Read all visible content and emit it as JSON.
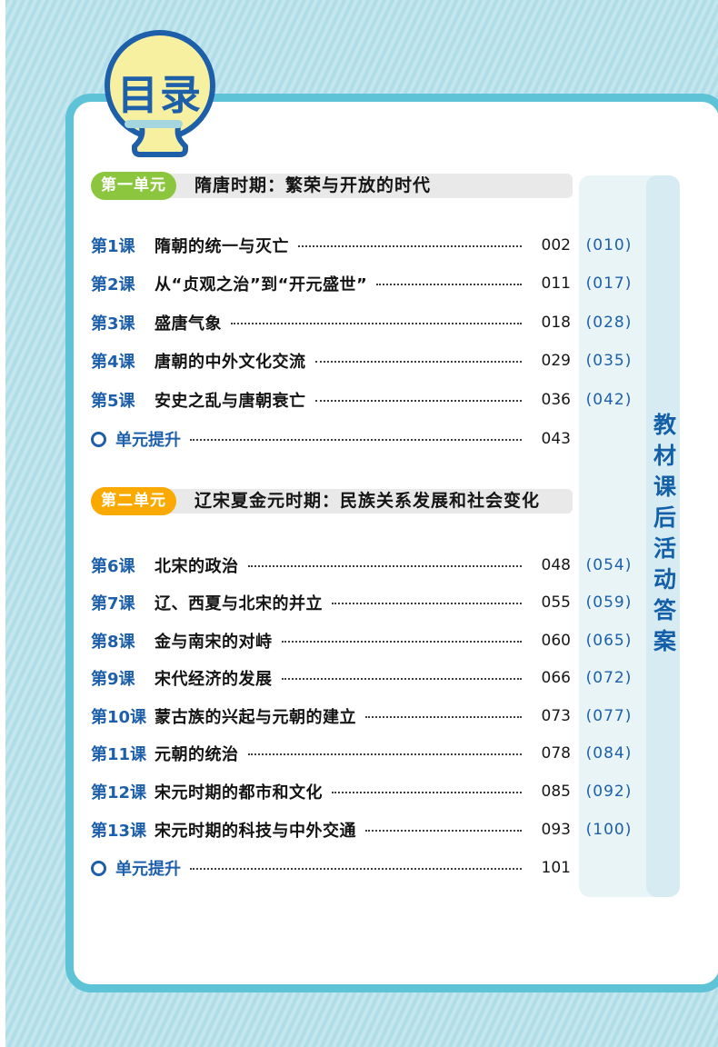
{
  "logo": {
    "title": "目录"
  },
  "answers_sidebar": {
    "label": "教材课后活动答案"
  },
  "colors": {
    "accent_blue": "#1d5faa",
    "card_border": "#5fc3d8",
    "unit1_badge": "#8cc63e",
    "unit2_badge": "#f9a900",
    "strip_light": "#e9f4f7",
    "strip_dark": "#d7ebf2"
  },
  "units": [
    {
      "badge": "第一单元",
      "badge_color": "#8cc63e",
      "title": "隋唐时期：繁荣与开放的时代",
      "lessons": [
        {
          "num": "第1课",
          "title": "隋朝的统一与灭亡",
          "page": "002",
          "answer_page": "(010)"
        },
        {
          "num": "第2课",
          "title": "从“贞观之治”到“开元盛世”",
          "page": "011",
          "answer_page": "(017)"
        },
        {
          "num": "第3课",
          "title": "盛唐气象",
          "page": "018",
          "answer_page": "(028)"
        },
        {
          "num": "第4课",
          "title": "唐朝的中外文化交流",
          "page": "029",
          "answer_page": "(035)"
        },
        {
          "num": "第5课",
          "title": "安史之乱与唐朝衰亡",
          "page": "036",
          "answer_page": "(042)"
        }
      ],
      "summary": {
        "label": "单元提升",
        "page": "043"
      }
    },
    {
      "badge": "第二单元",
      "badge_color": "#f9a900",
      "title": "辽宋夏金元时期：民族关系发展和社会变化",
      "lessons": [
        {
          "num": "第6课",
          "title": "北宋的政治",
          "page": "048",
          "answer_page": "(054)"
        },
        {
          "num": "第7课",
          "title": "辽、西夏与北宋的并立",
          "page": "055",
          "answer_page": "(059)"
        },
        {
          "num": "第8课",
          "title": "金与南宋的对峙",
          "page": "060",
          "answer_page": "(065)"
        },
        {
          "num": "第9课",
          "title": "宋代经济的发展",
          "page": "066",
          "answer_page": "(072)"
        },
        {
          "num": "第10课",
          "title": "蒙古族的兴起与元朝的建立",
          "page": "073",
          "answer_page": "(077)"
        },
        {
          "num": "第11课",
          "title": "元朝的统治",
          "page": "078",
          "answer_page": "(084)"
        },
        {
          "num": "第12课",
          "title": "宋元时期的都市和文化",
          "page": "085",
          "answer_page": "(092)"
        },
        {
          "num": "第13课",
          "title": "宋元时期的科技与中外交通",
          "page": "093",
          "answer_page": "(100)"
        }
      ],
      "summary": {
        "label": "单元提升",
        "page": "101"
      }
    }
  ]
}
